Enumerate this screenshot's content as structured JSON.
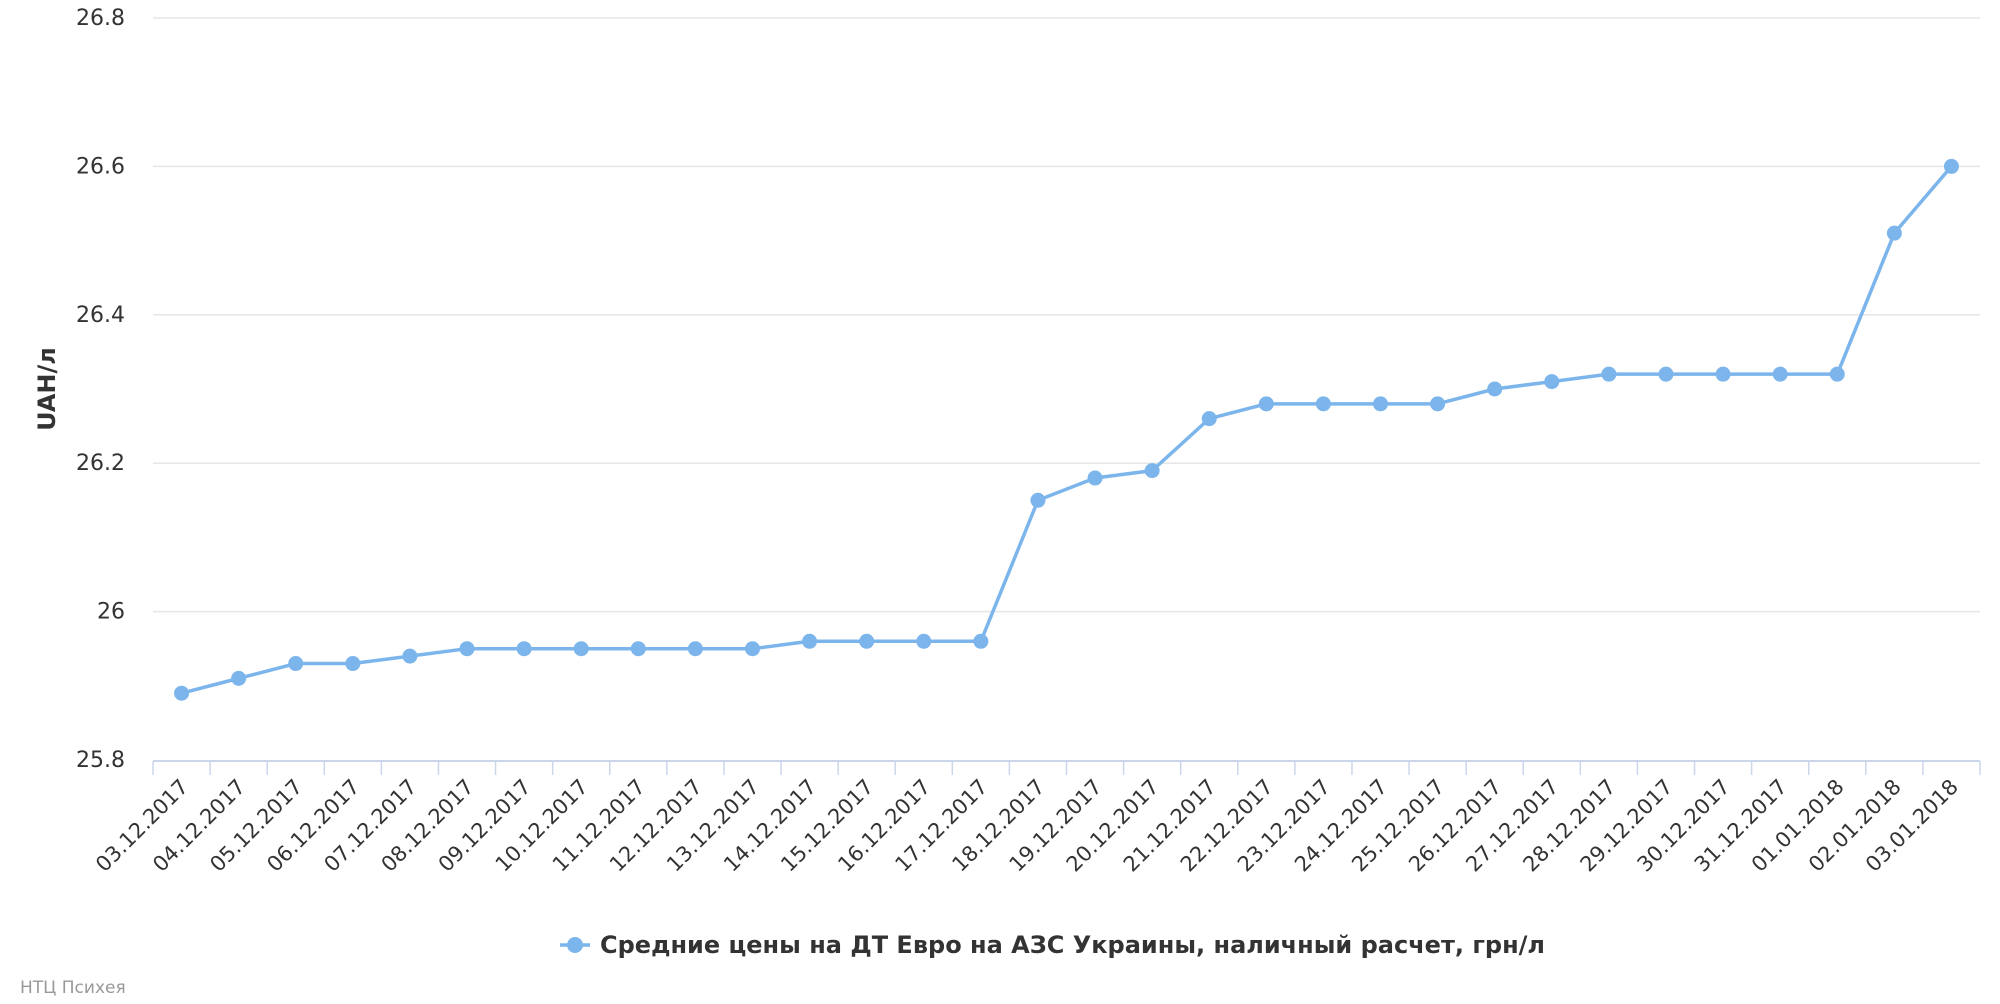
{
  "chart_data": {
    "type": "line",
    "title": "",
    "xlabel": "",
    "ylabel": "UAH/л",
    "ylim": [
      25.8,
      26.8
    ],
    "y_ticks": [
      "25.8",
      "26",
      "26.2",
      "26.4",
      "26.6",
      "26.8"
    ],
    "grid": "horizontal",
    "legend_position": "bottom-center",
    "categories": [
      "03.12.2017",
      "04.12.2017",
      "05.12.2017",
      "06.12.2017",
      "07.12.2017",
      "08.12.2017",
      "09.12.2017",
      "10.12.2017",
      "11.12.2017",
      "12.12.2017",
      "13.12.2017",
      "14.12.2017",
      "15.12.2017",
      "16.12.2017",
      "17.12.2017",
      "18.12.2017",
      "19.12.2017",
      "20.12.2017",
      "21.12.2017",
      "22.12.2017",
      "23.12.2017",
      "24.12.2017",
      "25.12.2017",
      "26.12.2017",
      "27.12.2017",
      "28.12.2017",
      "29.12.2017",
      "30.12.2017",
      "31.12.2017",
      "01.01.2018",
      "02.01.2018",
      "03.01.2018"
    ],
    "series": [
      {
        "name": "Средние цены на ДТ Евро на АЗС Украины, наличный расчет, грн/л",
        "color": "#7cb5ec",
        "values": [
          25.89,
          25.91,
          25.93,
          25.93,
          25.94,
          25.95,
          25.95,
          25.95,
          25.95,
          25.95,
          25.95,
          25.96,
          25.96,
          25.96,
          25.96,
          26.15,
          26.18,
          26.19,
          26.26,
          26.28,
          26.28,
          26.28,
          26.28,
          26.3,
          26.31,
          26.32,
          26.32,
          26.32,
          26.32,
          26.32,
          26.51,
          26.6
        ]
      }
    ]
  },
  "credits": "НТЦ Психея",
  "colors": {
    "grid": "#e6e6e6",
    "axis": "#ccd6eb",
    "text": "#333333",
    "credit": "#999999"
  }
}
